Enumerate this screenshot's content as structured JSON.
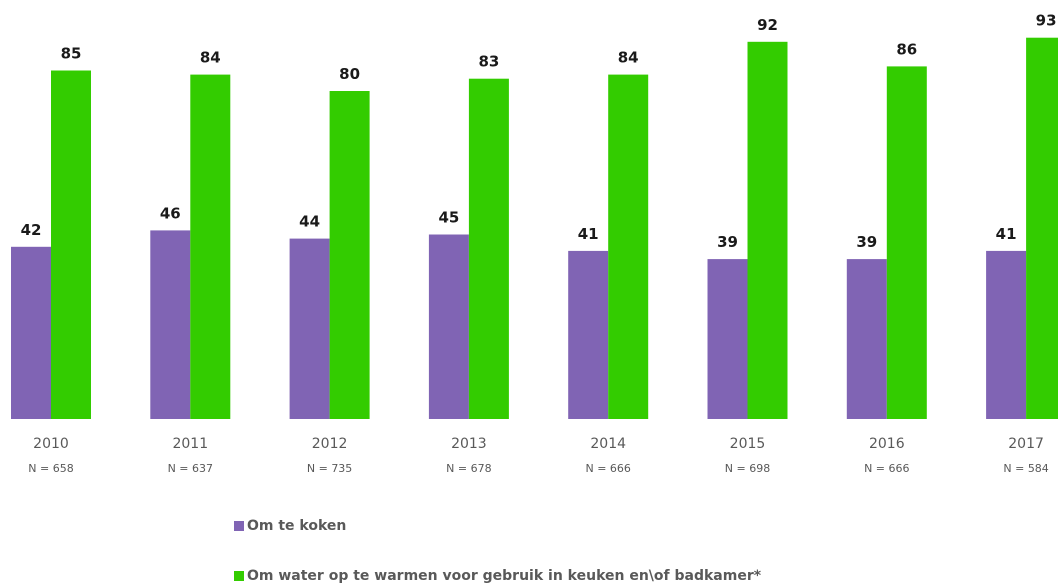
{
  "chart_data": {
    "type": "bar",
    "title": "",
    "categories": [
      "2010",
      "2011",
      "2012",
      "2013",
      "2014",
      "2015",
      "2016",
      "2017"
    ],
    "sample_sizes": [
      "N = 658",
      "N = 637",
      "N = 735",
      "N = 678",
      "N = 666",
      "N = 698",
      "N = 666",
      "N = 584"
    ],
    "series": [
      {
        "name": "Om te koken",
        "values": [
          42,
          46,
          44,
          45,
          41,
          39,
          39,
          41
        ],
        "color": "#8064b4"
      },
      {
        "name": "Om water op te warmen voor gebruik in keuken en\\of badkamer*",
        "values": [
          85,
          84,
          80,
          83,
          84,
          92,
          86,
          93
        ],
        "color": "#33cc00"
      }
    ],
    "ylim": [
      0,
      100
    ],
    "grid": false,
    "legend_position": "bottom"
  }
}
